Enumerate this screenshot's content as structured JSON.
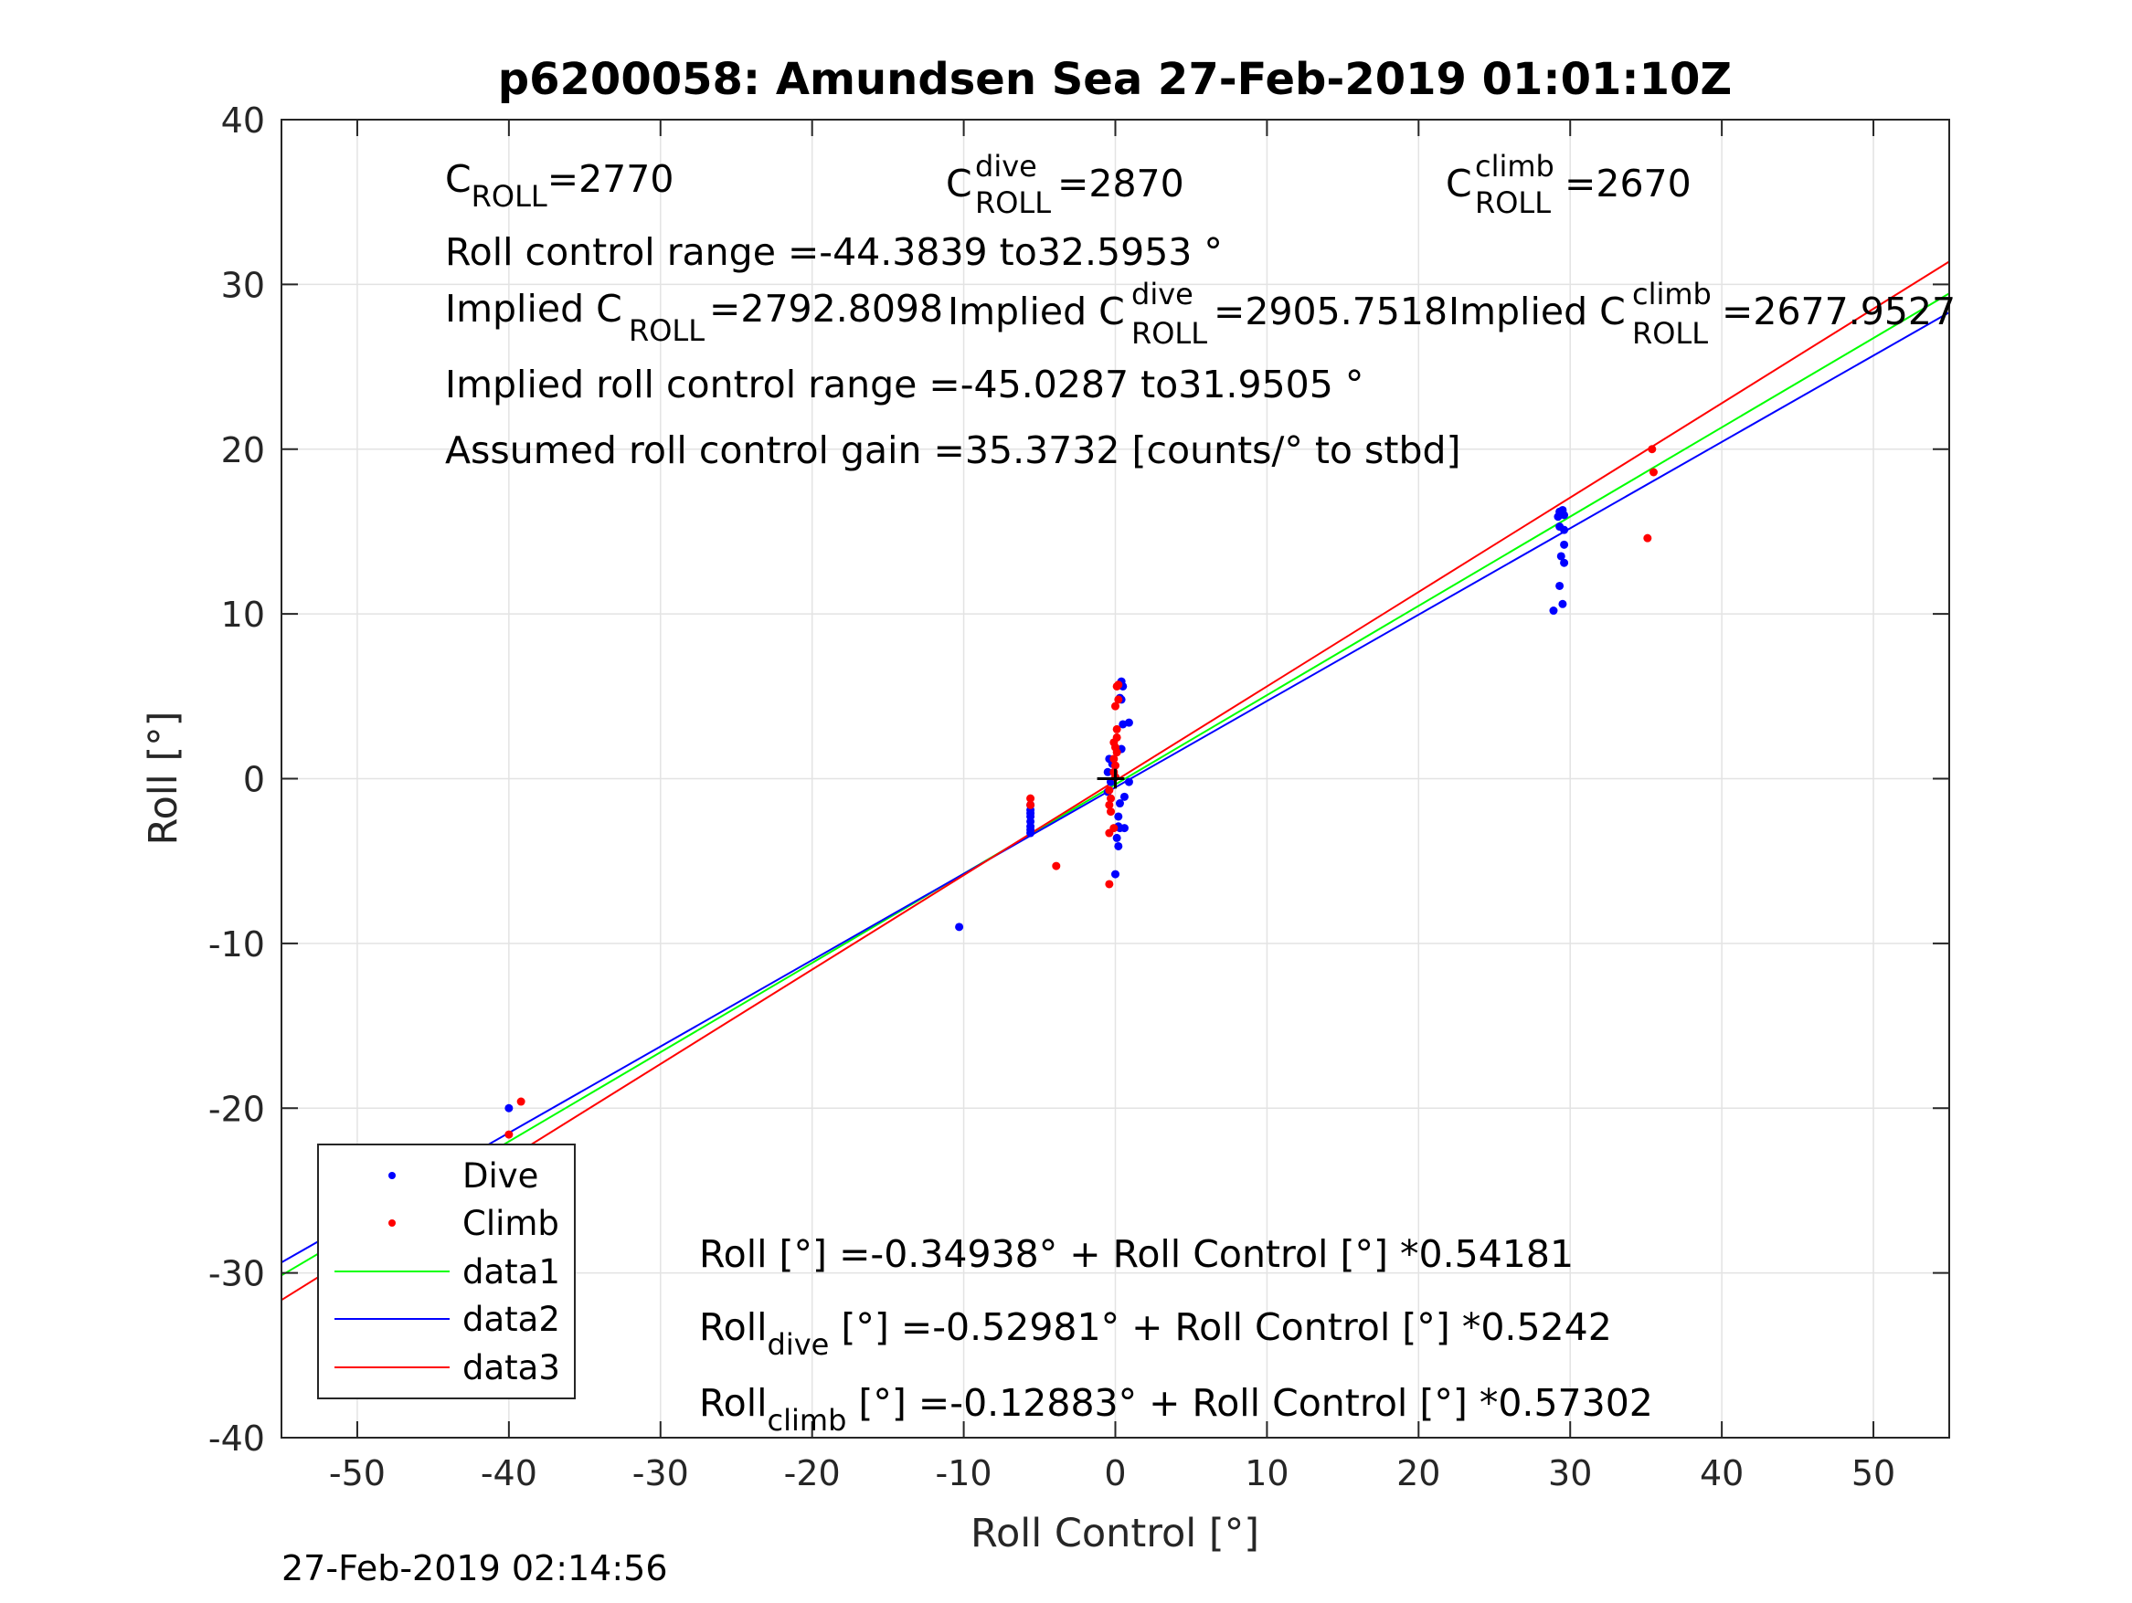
{
  "chart_data": {
    "type": "scatter",
    "title": "p6200058: Amundsen Sea 27-Feb-2019 01:01:10Z",
    "xlabel": "Roll Control [°]",
    "ylabel": "Roll [°]",
    "xlim": [
      -55,
      55
    ],
    "ylim": [
      -40,
      40
    ],
    "xticks": [
      -50,
      -40,
      -30,
      -20,
      -10,
      0,
      10,
      20,
      30,
      40,
      50
    ],
    "yticks": [
      -40,
      -30,
      -20,
      -10,
      0,
      10,
      20,
      30,
      40
    ],
    "grid": true,
    "legend_position": "bottom-left",
    "annotations": {
      "c_roll": {
        "base": "C",
        "sub": "ROLL",
        "value": "=2770"
      },
      "c_roll_dive": {
        "base": "C",
        "sup": "dive",
        "sub": "ROLL",
        "value": " =2870"
      },
      "c_roll_climb": {
        "base": "C",
        "sup": "climb",
        "sub": "ROLL",
        "value": " =2670"
      },
      "roll_range": "Roll control range =-44.3839 to32.5953 °",
      "implied_c_roll": {
        "prefix": "Implied C",
        "sub": "ROLL",
        "value": " =2792.8098"
      },
      "implied_c_roll_dive": {
        "prefix": "Implied C",
        "sup": "dive",
        "sub": "ROLL",
        "value": " =2905.7518"
      },
      "implied_c_roll_climb": {
        "prefix": "Implied C",
        "sup": "climb",
        "sub": "ROLL",
        "value": " =2677.9527"
      },
      "implied_range": "Implied roll control range =-45.0287 to31.9505 °",
      "gain": "Assumed roll control gain =35.3732 [counts/° to stbd]",
      "eq_all": "Roll [°] =-0.34938° + Roll Control [°] *0.54181",
      "eq_dive": {
        "base": "Roll",
        "sub": "dive",
        "rest": " [°] =-0.52981° + Roll Control [°] *0.5242"
      },
      "eq_climb": {
        "base": "Roll",
        "sub": "climb",
        "rest": " [°] =-0.12883° + Roll Control [°] *0.57302"
      }
    },
    "timestamp": "27-Feb-2019 02:14:56",
    "series": [
      {
        "name": "Dive",
        "kind": "points",
        "color": "#0000ff",
        "points": [
          [
            -47.5,
            -24.2
          ],
          [
            -40,
            -20
          ],
          [
            -40.2,
            -22.8
          ],
          [
            -40.3,
            -25.2
          ],
          [
            -10.3,
            -9
          ],
          [
            -5.6,
            -1.6
          ],
          [
            -5.6,
            -1.9
          ],
          [
            -5.6,
            -2.1
          ],
          [
            -5.6,
            -2.3
          ],
          [
            -5.6,
            -2.6
          ],
          [
            -5.6,
            -2.9
          ],
          [
            -5.6,
            -3.1
          ],
          [
            -5.6,
            -3.3
          ],
          [
            -0.4,
            1.2
          ],
          [
            -0.2,
            0.9
          ],
          [
            -0.5,
            0.4
          ],
          [
            -0.3,
            -0.2
          ],
          [
            -0.5,
            -0.8
          ],
          [
            0.3,
            -1.5
          ],
          [
            0.2,
            -2.3
          ],
          [
            0.3,
            -3
          ],
          [
            0.1,
            -3.6
          ],
          [
            0.2,
            -4.1
          ],
          [
            0,
            -5.8
          ],
          [
            0.4,
            5.9
          ],
          [
            0.5,
            5.6
          ],
          [
            0.3,
            4.9
          ],
          [
            0.4,
            4.8
          ],
          [
            0.5,
            3.3
          ],
          [
            0.9,
            3.4
          ],
          [
            0.4,
            1.8
          ],
          [
            0.6,
            -1.1
          ],
          [
            0.6,
            -3
          ],
          [
            0.2,
            -2.9
          ],
          [
            0.9,
            -0.2
          ],
          [
            29.3,
            16.2
          ],
          [
            29.5,
            16.3
          ],
          [
            29.6,
            16
          ],
          [
            29.2,
            15.9
          ],
          [
            29.3,
            15.3
          ],
          [
            29.6,
            15.1
          ],
          [
            29.6,
            14.2
          ],
          [
            29.4,
            13.5
          ],
          [
            29.6,
            13.1
          ],
          [
            29.3,
            11.7
          ],
          [
            29.5,
            10.6
          ],
          [
            28.9,
            10.2
          ]
        ]
      },
      {
        "name": "Climb",
        "kind": "points",
        "color": "#ff0000",
        "points": [
          [
            -47.4,
            -27.1
          ],
          [
            -39.2,
            -19.6
          ],
          [
            -40,
            -21.6
          ],
          [
            -39.8,
            -23.5
          ],
          [
            -40,
            -23.9
          ],
          [
            -39.8,
            -24.4
          ],
          [
            -40.1,
            -25
          ],
          [
            -39.9,
            -25.4
          ],
          [
            -40.2,
            -25.6
          ],
          [
            -5.6,
            -1.2
          ],
          [
            -5.6,
            -1.6
          ],
          [
            -3.9,
            -5.3
          ],
          [
            -0.4,
            -0.7
          ],
          [
            -0.3,
            -1.2
          ],
          [
            -0.4,
            -1.6
          ],
          [
            -0.3,
            -2
          ],
          [
            -0.4,
            -3.3
          ],
          [
            -0.1,
            -3
          ],
          [
            -0.4,
            -6.4
          ],
          [
            0,
            0.1
          ],
          [
            -0.1,
            0.4
          ],
          [
            0,
            0.8
          ],
          [
            -0.1,
            1.2
          ],
          [
            0.1,
            1.6
          ],
          [
            0,
            1.9
          ],
          [
            -0.1,
            2.2
          ],
          [
            0.1,
            2.5
          ],
          [
            0.1,
            3
          ],
          [
            0,
            4.4
          ],
          [
            0.2,
            4.8
          ],
          [
            0.1,
            5.6
          ],
          [
            0.2,
            5.7
          ],
          [
            35.4,
            20
          ],
          [
            35.5,
            18.6
          ],
          [
            35.1,
            14.6
          ]
        ]
      },
      {
        "name": "data1",
        "kind": "line",
        "color": "#00ff00",
        "intercept": -0.34938,
        "slope": 0.54181
      },
      {
        "name": "data2",
        "kind": "line",
        "color": "#0000ff",
        "intercept": -0.52981,
        "slope": 0.5242
      },
      {
        "name": "data3",
        "kind": "line",
        "color": "#ff0000",
        "intercept": -0.12883,
        "slope": 0.57302
      }
    ]
  }
}
